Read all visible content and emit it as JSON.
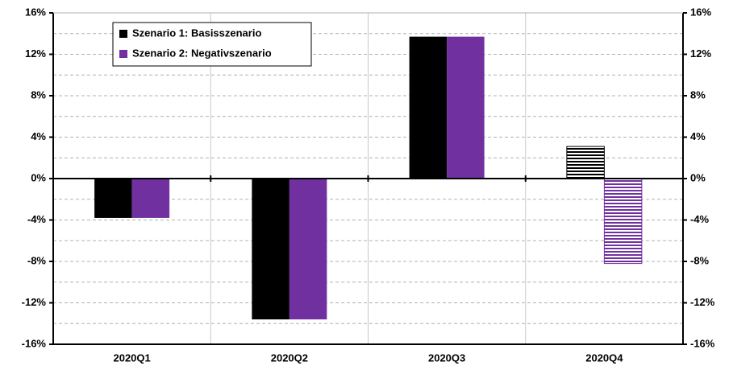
{
  "chart_data": {
    "type": "bar",
    "categories": [
      "2020Q1",
      "2020Q2",
      "2020Q3",
      "2020Q4"
    ],
    "series": [
      {
        "name": "Szenario 1: Basisszenario",
        "color": "#000000",
        "values": [
          -3.8,
          -13.6,
          13.7,
          3.1
        ],
        "hatch": [
          false,
          false,
          false,
          true
        ]
      },
      {
        "name": "Szenario 2: Negativszenario",
        "color": "#7030a0",
        "values": [
          -3.8,
          -13.6,
          13.7,
          -8.2
        ],
        "hatch": [
          false,
          false,
          false,
          true
        ]
      }
    ],
    "ylim": [
      -16,
      16
    ],
    "yticks": [
      {
        "value": -16,
        "label": "-16%"
      },
      {
        "value": -12,
        "label": "-12%"
      },
      {
        "value": -8,
        "label": "-8%"
      },
      {
        "value": -4,
        "label": "-4%"
      },
      {
        "value": 0,
        "label": "0%"
      },
      {
        "value": 4,
        "label": "4%"
      },
      {
        "value": 8,
        "label": "8%"
      },
      {
        "value": 12,
        "label": "12%"
      },
      {
        "value": 16,
        "label": "16%"
      }
    ],
    "y2lim": [
      -16,
      16
    ],
    "y2ticks": [
      {
        "value": -16,
        "label": "-16%"
      },
      {
        "value": -12,
        "label": "-12%"
      },
      {
        "value": -8,
        "label": "-8%"
      },
      {
        "value": -4,
        "label": "-4%"
      },
      {
        "value": 0,
        "label": "0%"
      },
      {
        "value": 4,
        "label": "4%"
      },
      {
        "value": 8,
        "label": "8%"
      },
      {
        "value": 12,
        "label": "12%"
      },
      {
        "value": 16,
        "label": "16%"
      }
    ],
    "minor_yticks": [
      -14,
      -10,
      -6,
      -2,
      2,
      6,
      10,
      14
    ],
    "grid": true,
    "legend": "upper left"
  }
}
